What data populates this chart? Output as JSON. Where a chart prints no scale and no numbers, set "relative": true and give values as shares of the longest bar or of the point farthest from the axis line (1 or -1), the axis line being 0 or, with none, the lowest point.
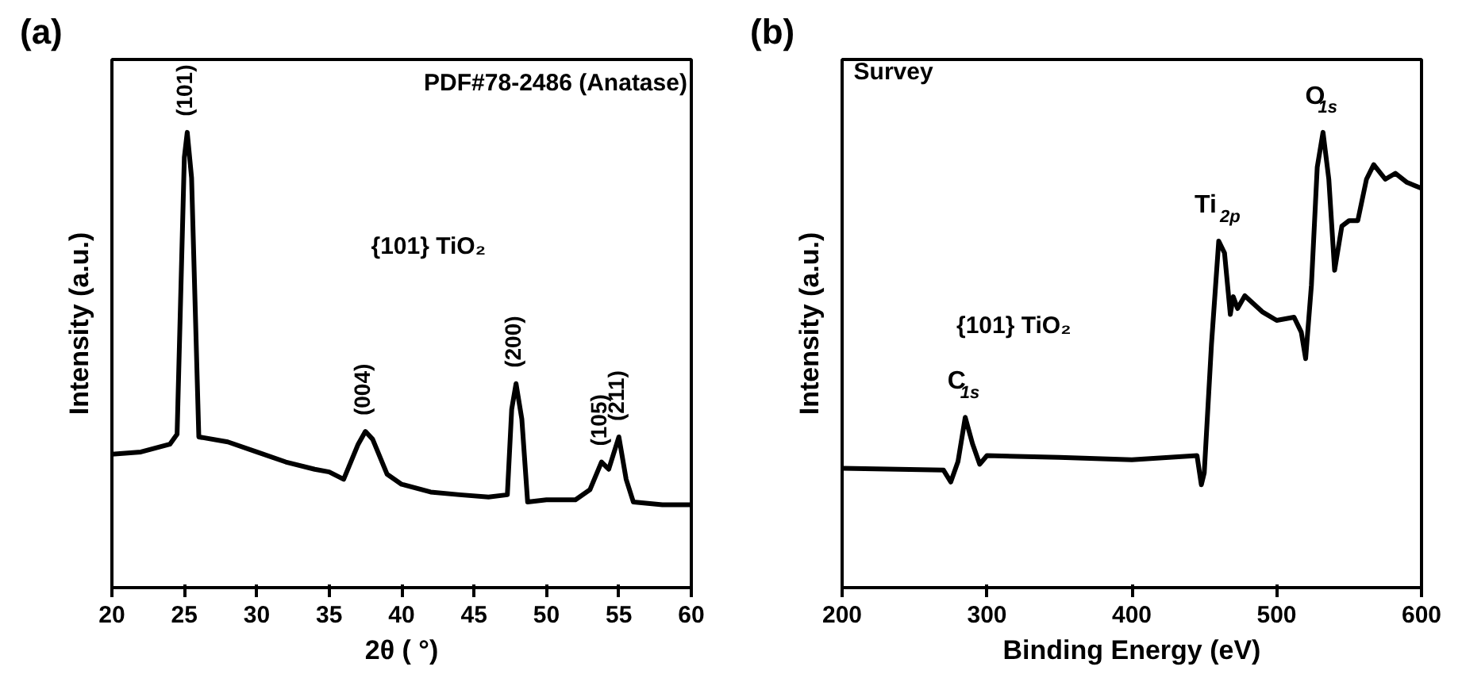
{
  "chart_data": [
    {
      "type": "line",
      "title": "(a)",
      "xlabel": "2θ ( °)",
      "ylabel": "Intensity (a.u.)",
      "relative": true,
      "xlim": [
        20,
        60
      ],
      "xticks": [
        20,
        25,
        30,
        35,
        40,
        45,
        50,
        55,
        60
      ],
      "tick_labels": "x",
      "grid": false,
      "annotations": [
        "PDF#78-2486 (Anatase)",
        "{101} TiO₂",
        {
          "text": "(101)",
          "x": 25.2,
          "y": 1.0
        },
        {
          "text": "(004)",
          "x": 37.5,
          "y": 0.343
        },
        {
          "text": "(200)",
          "x": 47.9,
          "y": 0.448
        },
        {
          "text": "(105)",
          "x": 53.8,
          "y": 0.276
        },
        {
          "text": "(211)",
          "x": 55.0,
          "y": 0.331
        }
      ],
      "series": [
        {
          "color": "#000000",
          "x": [
            20,
            22,
            24,
            24.5,
            25.0,
            25.2,
            25.5,
            26,
            28,
            30,
            32,
            34,
            35,
            36,
            37,
            37.5,
            38,
            39,
            40,
            42,
            44,
            46,
            47.3,
            47.6,
            47.9,
            48.3,
            48.7,
            50,
            52,
            53,
            53.8,
            54.3,
            55,
            55.5,
            56,
            58,
            60
          ],
          "values": [
            0.293,
            0.298,
            0.315,
            0.337,
            0.945,
            1.0,
            0.9,
            0.331,
            0.32,
            0.298,
            0.276,
            0.26,
            0.254,
            0.238,
            0.315,
            0.343,
            0.326,
            0.249,
            0.227,
            0.21,
            0.204,
            0.199,
            0.204,
            0.392,
            0.448,
            0.37,
            0.188,
            0.193,
            0.193,
            0.215,
            0.276,
            0.26,
            0.331,
            0.238,
            0.188,
            0.182,
            0.182
          ]
        }
      ]
    },
    {
      "type": "line",
      "title": "(b)",
      "xlabel": "Binding Energy (eV)",
      "ylabel": "Intensity (a.u.)",
      "relative": true,
      "xlim": [
        200,
        600
      ],
      "xticks": [
        200,
        300,
        400,
        500,
        600
      ],
      "tick_labels": "x",
      "grid": false,
      "annotations": [
        "Survey",
        "{101} TiO₂",
        {
          "text": "C$_{1s}$",
          "x": 285,
          "y": 0.374
        },
        {
          "text": "Ti$_{2p}$",
          "x": 460,
          "y": 0.761
        },
        {
          "text": "O$_{1s}$",
          "x": 532,
          "y": 1.0
        }
      ],
      "series": [
        {
          "color": "#000000",
          "x": [
            200,
            270,
            275,
            280,
            285,
            290,
            295,
            300,
            350,
            400,
            445,
            448,
            450,
            455,
            460,
            464,
            468,
            470,
            473,
            478,
            490,
            500,
            512,
            517,
            520,
            524,
            528,
            532,
            536,
            540,
            545,
            550,
            556,
            562,
            567,
            575,
            582,
            590,
            600
          ],
          "values": [
            0.262,
            0.258,
            0.232,
            0.277,
            0.374,
            0.316,
            0.271,
            0.29,
            0.286,
            0.281,
            0.29,
            0.226,
            0.252,
            0.535,
            0.761,
            0.735,
            0.6,
            0.639,
            0.613,
            0.641,
            0.606,
            0.587,
            0.594,
            0.561,
            0.503,
            0.665,
            0.923,
            1.0,
            0.897,
            0.697,
            0.794,
            0.806,
            0.806,
            0.897,
            0.929,
            0.897,
            0.91,
            0.89,
            0.877
          ]
        }
      ]
    }
  ]
}
